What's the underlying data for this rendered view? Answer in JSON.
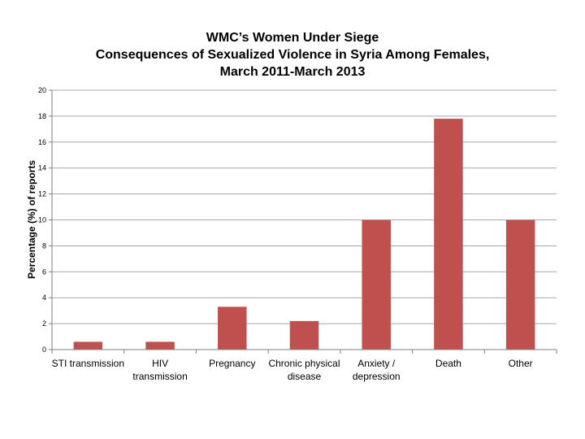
{
  "chart_data": {
    "type": "bar",
    "title_lines": [
      "WMC’s Women Under Siege",
      "Consequences of Sexualized Violence in Syria Among Females,",
      "March 2011-March 2013"
    ],
    "ylabel": "Percentage (%) of reports",
    "xlabel": "",
    "ylim": [
      0,
      20
    ],
    "yticks": [
      "0",
      "2",
      "4",
      "6",
      "8",
      "10",
      "12",
      "14",
      "16",
      "18",
      "20"
    ],
    "categories": [
      [
        "STI transmission"
      ],
      [
        "HIV",
        "transmission"
      ],
      [
        "Pregnancy"
      ],
      [
        "Chronic physical",
        "disease"
      ],
      [
        "Anxiety /",
        "depression"
      ],
      [
        "Death"
      ],
      [
        "Other"
      ]
    ],
    "values": [
      0.6,
      0.6,
      3.3,
      2.2,
      10.0,
      17.8,
      10.0
    ],
    "bar_color": "#c0504d",
    "grid": true,
    "legend": "none"
  }
}
